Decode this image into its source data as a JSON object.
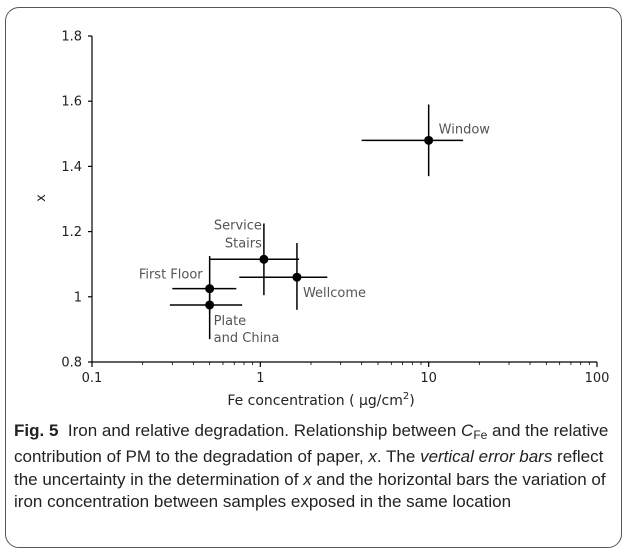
{
  "chart_data": {
    "type": "scatter",
    "xscale": "log",
    "xlim": [
      0.1,
      100
    ],
    "ylim": [
      0.8,
      1.8
    ],
    "x_ticks": [
      "0.1",
      "1",
      "10",
      "100"
    ],
    "x_tick_values": [
      0.1,
      1,
      10,
      100
    ],
    "y_ticks": [
      "0.8",
      "1",
      "1.2",
      "1.4",
      "1.6",
      "1.8"
    ],
    "y_tick_values": [
      0.8,
      1.0,
      1.2,
      1.4,
      1.6,
      1.8
    ],
    "xlabel": "Fe concentration ( µg/cm",
    "xlabel_sup": "2",
    "xlabel_tail": ")",
    "ylabel": "x",
    "grid": false,
    "marker_color": "#000000",
    "points": [
      {
        "label": [
          "Window"
        ],
        "x": 10.0,
        "y": 1.48,
        "xerr": [
          4.0,
          16.0
        ],
        "yerr": [
          1.37,
          1.59
        ]
      },
      {
        "label": [
          "Service",
          "Stairs"
        ],
        "x": 1.05,
        "y": 1.115,
        "xerr": [
          0.5,
          1.7
        ],
        "yerr": [
          1.005,
          1.225
        ]
      },
      {
        "label": [
          "Wellcome"
        ],
        "x": 1.65,
        "y": 1.06,
        "xerr": [
          0.75,
          2.5
        ],
        "yerr": [
          0.96,
          1.165
        ]
      },
      {
        "label": [
          "First Floor"
        ],
        "x": 0.5,
        "y": 1.025,
        "xerr": [
          0.3,
          0.72
        ],
        "yerr": [
          0.95,
          1.125
        ]
      },
      {
        "label": [
          "Plate",
          "and China"
        ],
        "x": 0.5,
        "y": 0.975,
        "xerr": [
          0.29,
          0.78
        ],
        "yerr": [
          0.87,
          1.025
        ]
      }
    ]
  },
  "caption": {
    "fig_label": "Fig. 5",
    "title": "Iron and relative degradation.",
    "t1": " Relationship between ",
    "cfe_c": "C",
    "cfe_sub": "Fe",
    "t2": " and the relative contribution of PM to the degradation of paper, ",
    "x_var": "x",
    "t3": ". The ",
    "emph": "vertical error bars",
    "t4": " reflect the uncertainty in the determination of ",
    "x_var2": "x",
    "t5": " and the horizontal bars the variation of iron concentration between samples exposed in the same location"
  }
}
